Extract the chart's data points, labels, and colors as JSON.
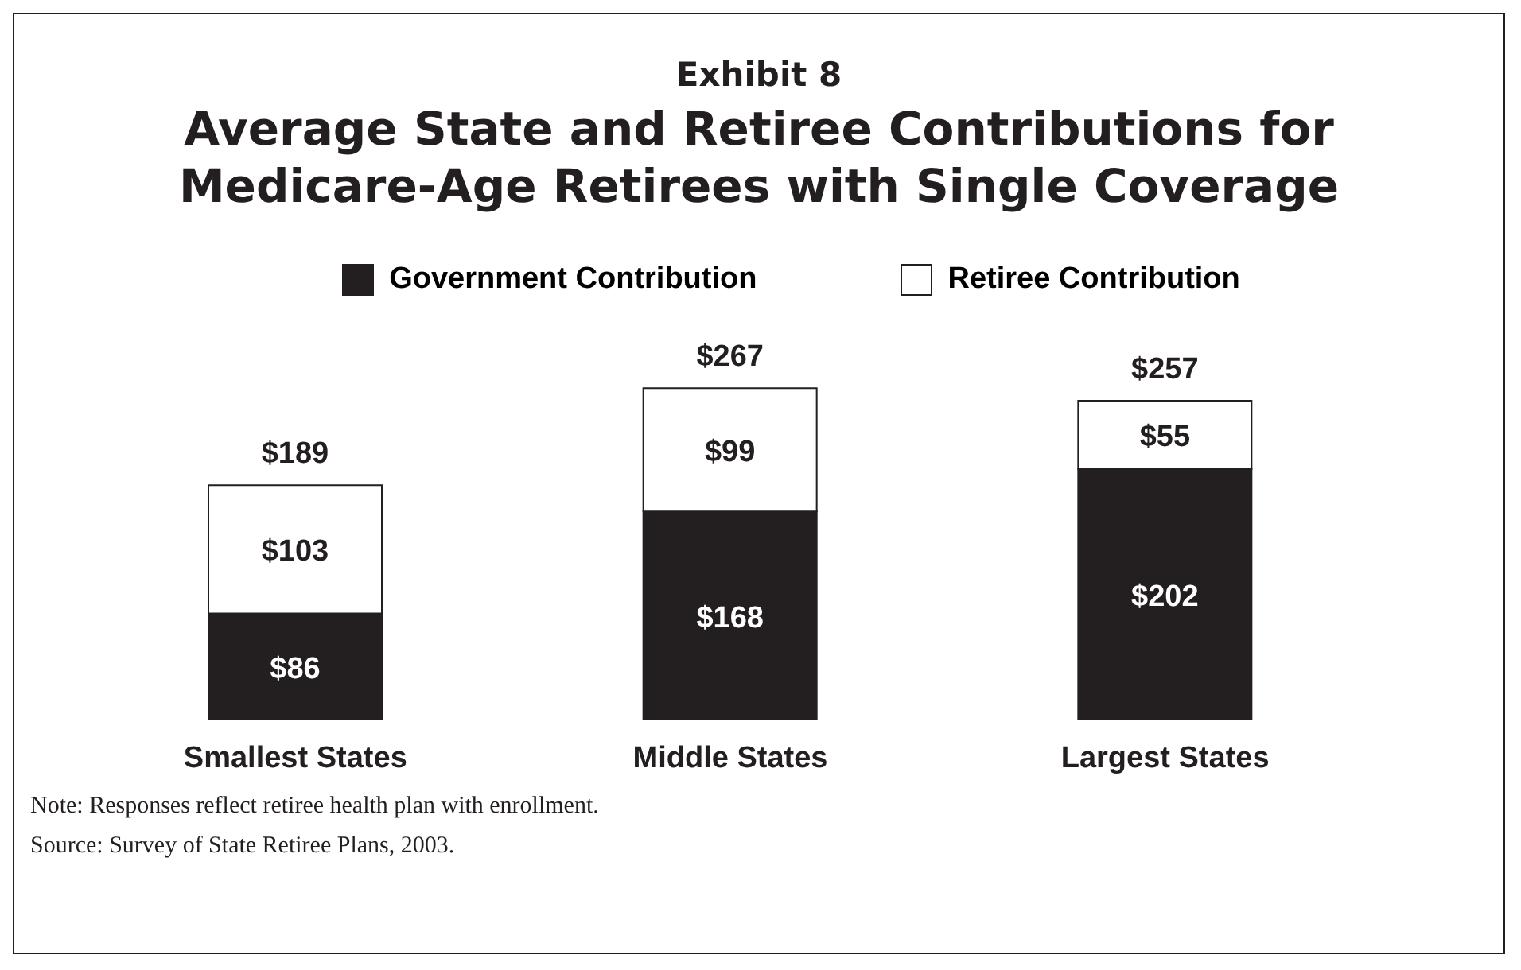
{
  "chart_data": {
    "type": "bar",
    "title": "Exhibit 8",
    "subtitle": "Average State and Retiree Contributions for Medicare-Age Retirees with Single Coverage",
    "categories": [
      "Smallest States",
      "Middle States",
      "Largest States"
    ],
    "stacked": true,
    "legend": "top",
    "grid": false,
    "series": [
      {
        "name": "Government Contribution",
        "color": "#231f20",
        "values": [
          86,
          168,
          202
        ],
        "value_labels": [
          "$86",
          "$168",
          "$202"
        ]
      },
      {
        "name": "Retiree Contribution",
        "color": "#ffffff",
        "values": [
          103,
          99,
          55
        ],
        "value_labels": [
          "$103",
          "$99",
          "$55"
        ]
      }
    ],
    "totals": [
      "$189",
      "$267",
      "$257"
    ],
    "annotations": [
      "Note: Responses reflect retiree health plan with enrollment.",
      "Source: Survey of State Retiree Plans, 2003."
    ]
  }
}
